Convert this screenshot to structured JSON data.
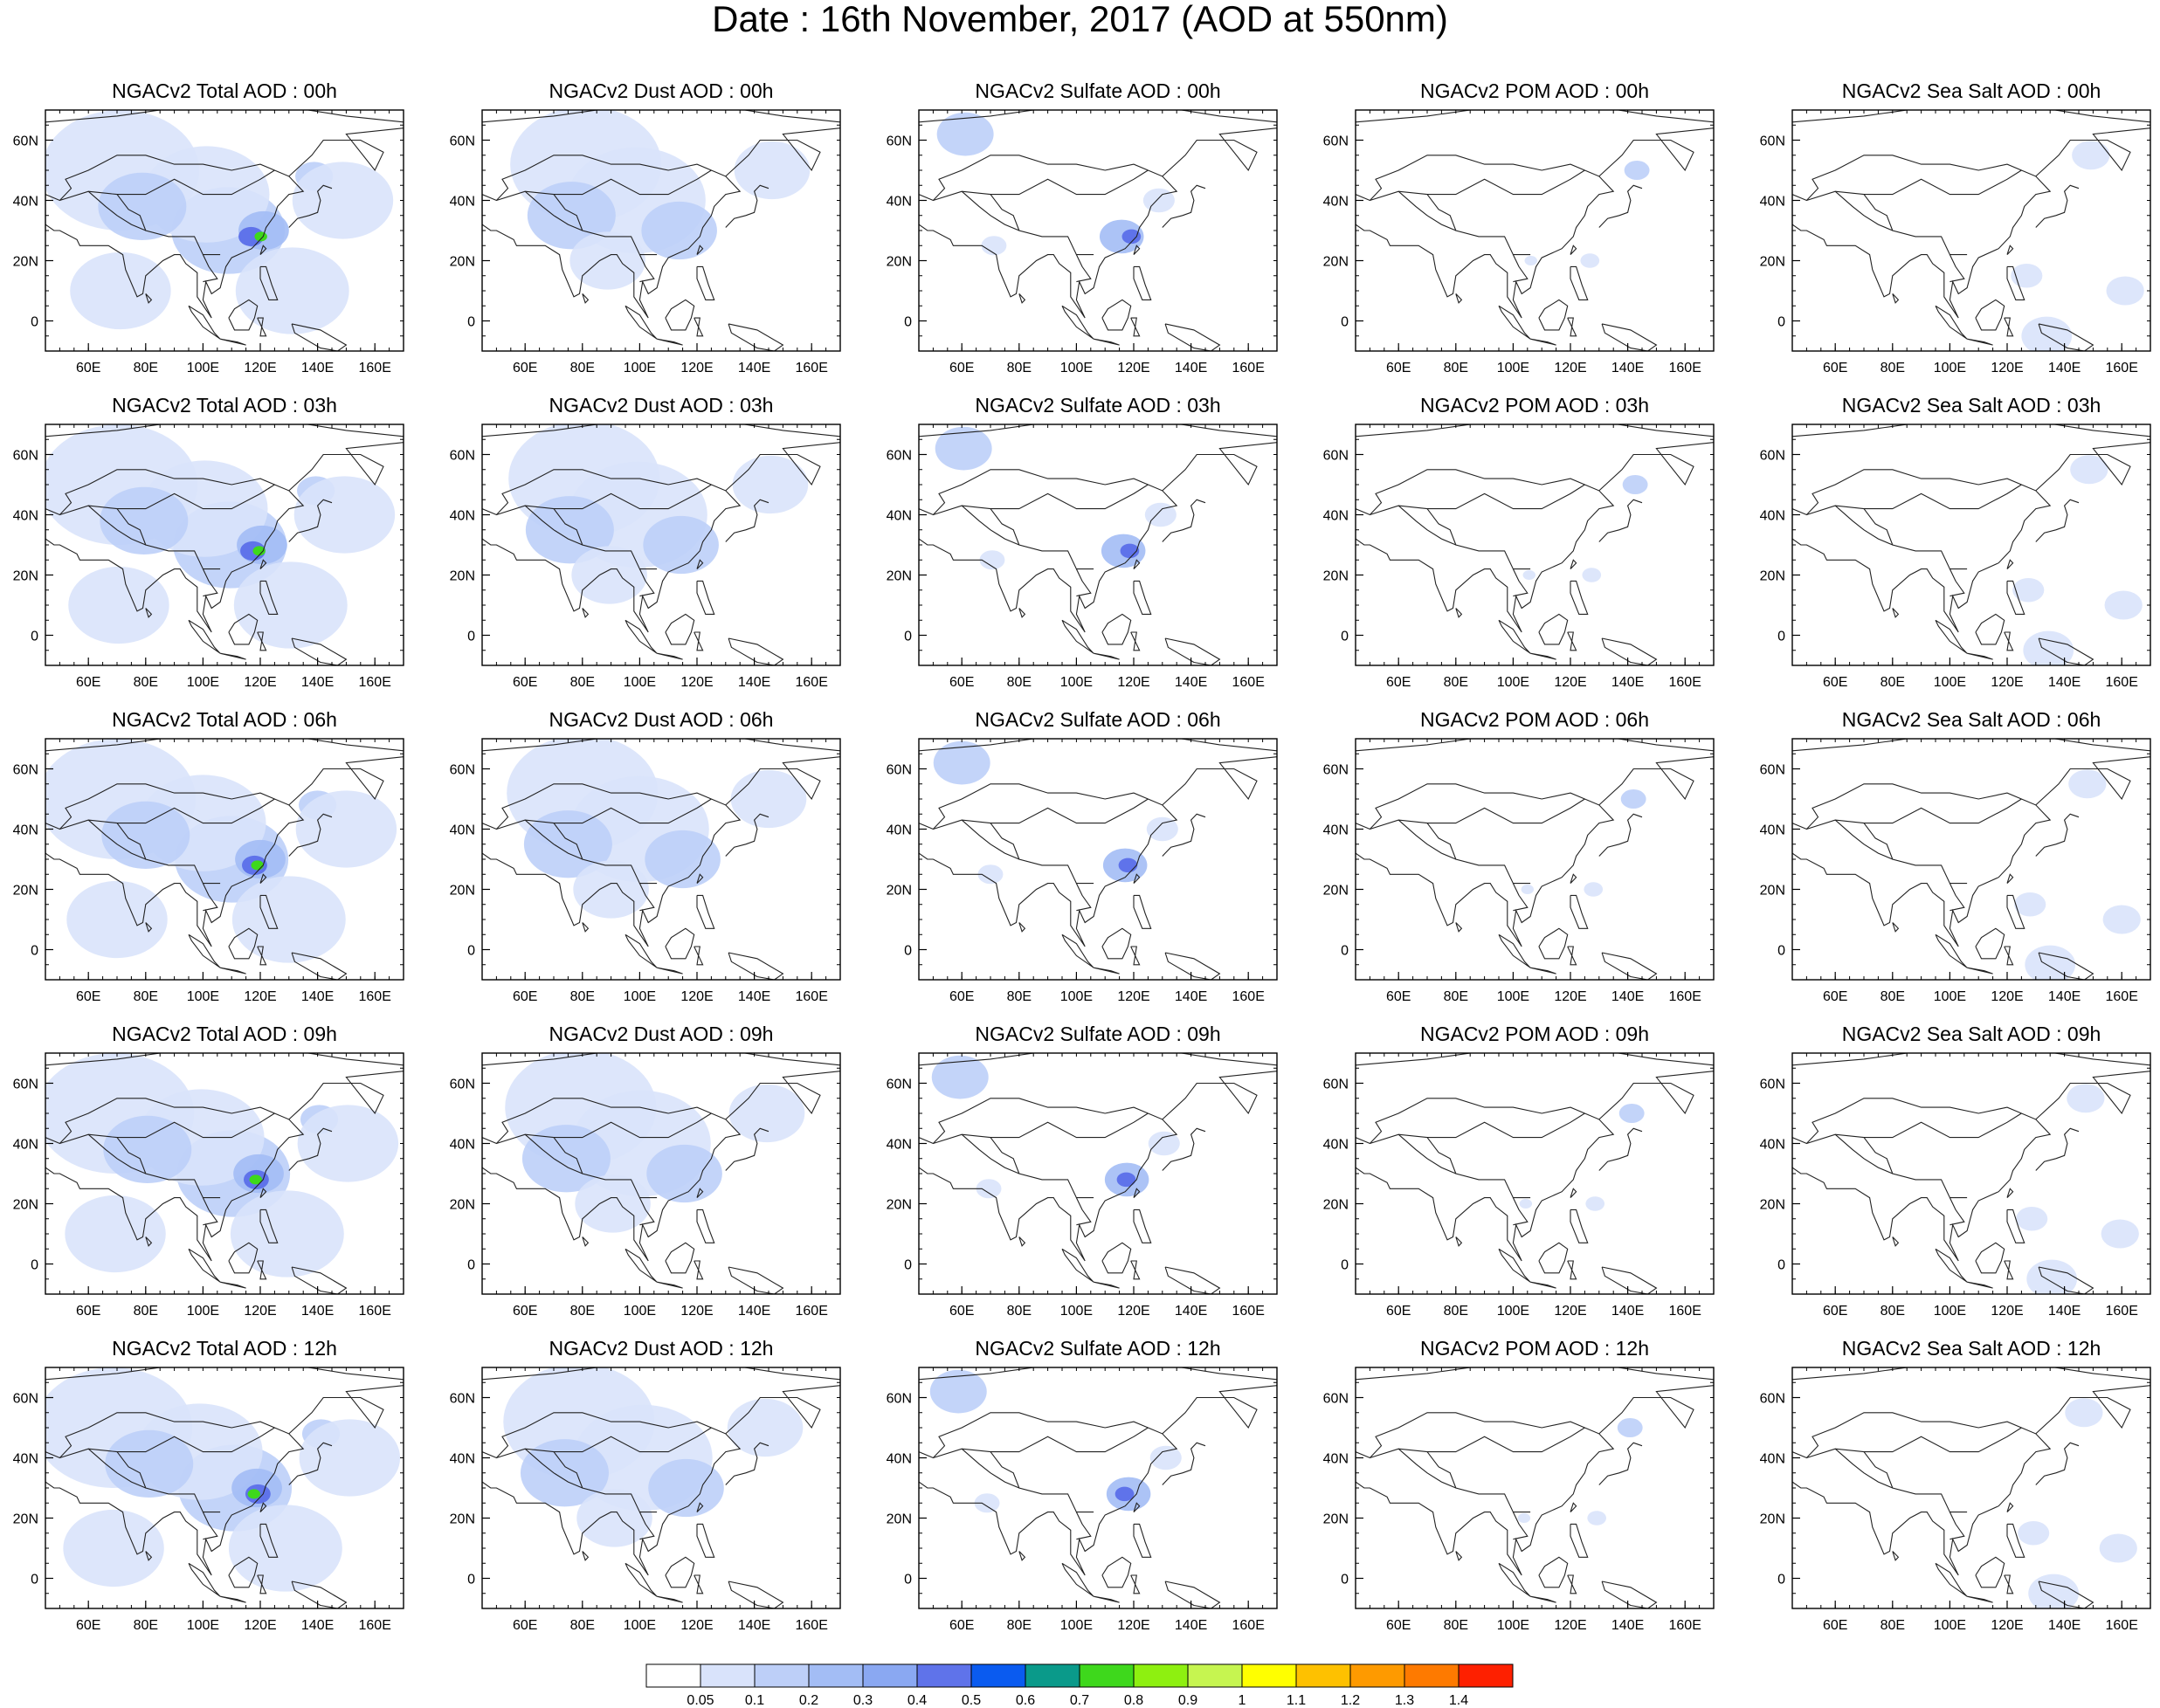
{
  "title": "Date : 16th November, 2017 (AOD at 550nm)",
  "panels": [
    [
      "NGACv2 Total AOD : 00h",
      "NGACv2 Dust AOD : 00h",
      "NGACv2 Sulfate AOD : 00h",
      "NGACv2 POM AOD : 00h",
      "NGACv2 Sea Salt AOD : 00h"
    ],
    [
      "NGACv2 Total AOD : 03h",
      "NGACv2 Dust AOD : 03h",
      "NGACv2 Sulfate AOD : 03h",
      "NGACv2 POM AOD : 03h",
      "NGACv2 Sea Salt AOD : 03h"
    ],
    [
      "NGACv2 Total AOD : 06h",
      "NGACv2 Dust AOD : 06h",
      "NGACv2 Sulfate AOD : 06h",
      "NGACv2 POM AOD : 06h",
      "NGACv2 Sea Salt AOD : 06h"
    ],
    [
      "NGACv2 Total AOD : 09h",
      "NGACv2 Dust AOD : 09h",
      "NGACv2 Sulfate AOD : 09h",
      "NGACv2 POM AOD : 09h",
      "NGACv2 Sea Salt  AOD : 09h"
    ],
    [
      "NGACv2 Total AOD  : 12h",
      "NGACv2 Dust AOD : 12h",
      "NGACv2 Sulfate AOD : 12h",
      "NGACv2 POM  AOD : 12h",
      "NGACv2 Sea Salt  AOD : 12h"
    ]
  ],
  "lon_ticks": [
    "60E",
    "80E",
    "100E",
    "120E",
    "140E",
    "160E"
  ],
  "lat_ticks": [
    "60N",
    "40N",
    "20N",
    "0"
  ],
  "map_extent": {
    "lon": [
      45,
      170
    ],
    "lat": [
      -10,
      70
    ]
  },
  "colorbar": {
    "labels": [
      "0.05",
      "0.1",
      "0.2",
      "0.3",
      "0.4",
      "0.5",
      "0.6",
      "0.7",
      "0.8",
      "0.9",
      "1",
      "1.1",
      "1.2",
      "1.3",
      "1.4"
    ],
    "colors": [
      "#ffffff",
      "#d9e3fb",
      "#bdcff8",
      "#a3bdf5",
      "#8aa8f2",
      "#5f73ea",
      "#0a5bf0",
      "#0a9a8a",
      "#3ed81c",
      "#8ef010",
      "#c6f550",
      "#ffff00",
      "#fec100",
      "#fe9a00",
      "#fe7a00",
      "#fe2000"
    ]
  }
}
